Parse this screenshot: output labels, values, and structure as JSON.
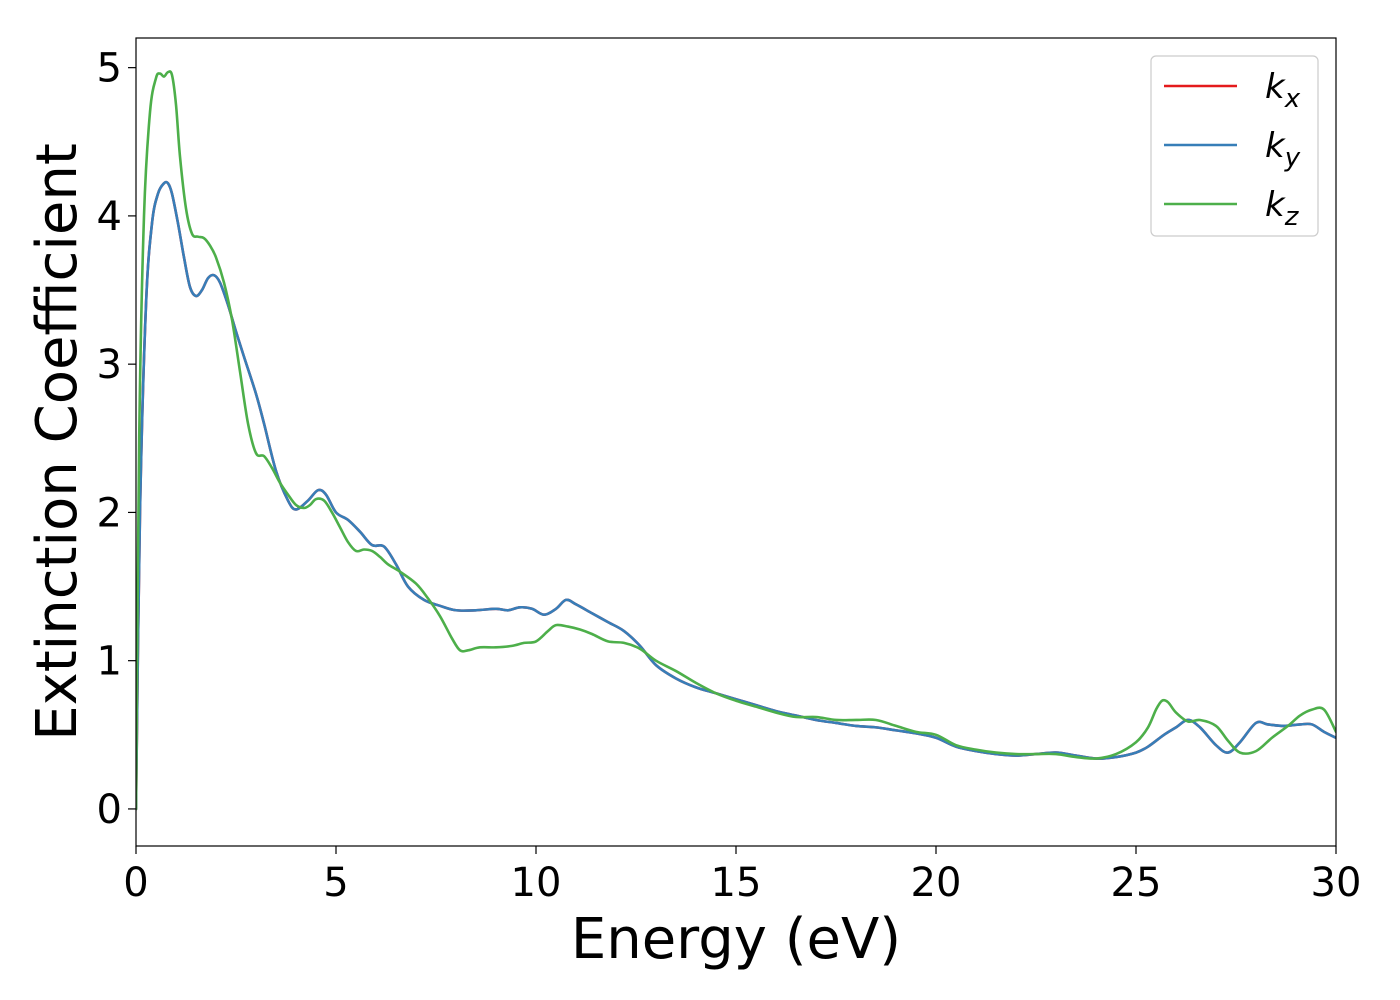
{
  "chart_data": {
    "type": "line",
    "title": "",
    "xlabel": "Energy (eV)",
    "ylabel": "Extinction Coefficient",
    "xlim": [
      0,
      30
    ],
    "ylim": [
      -0.25,
      5.2
    ],
    "xticks": [
      0,
      5,
      10,
      15,
      20,
      25,
      30
    ],
    "yticks": [
      0,
      1,
      2,
      3,
      4,
      5
    ],
    "grid": false,
    "legend_position": "top-right",
    "series": [
      {
        "name": "k_x",
        "legend_base": "k",
        "legend_sub": "x",
        "color": "#e41a1c",
        "x": [
          0,
          0.1,
          0.25,
          0.4,
          0.55,
          0.7,
          0.8,
          0.9,
          1.05,
          1.2,
          1.35,
          1.5,
          1.65,
          1.8,
          1.95,
          2.1,
          2.3,
          2.5,
          2.7,
          3.0,
          3.2,
          3.5,
          3.8,
          4.0,
          4.3,
          4.55,
          4.75,
          5.0,
          5.3,
          5.6,
          5.9,
          6.2,
          6.5,
          6.8,
          7.2,
          7.6,
          8.0,
          8.5,
          9.0,
          9.3,
          9.6,
          9.9,
          10.2,
          10.5,
          10.75,
          11.0,
          11.4,
          11.8,
          12.2,
          12.6,
          13.0,
          13.5,
          14.0,
          14.5,
          15.0,
          15.5,
          16.0,
          16.5,
          17.0,
          17.5,
          18.0,
          18.5,
          19.0,
          19.5,
          20.0,
          20.5,
          21.0,
          21.5,
          22.0,
          22.5,
          23.0,
          23.5,
          24.0,
          24.5,
          25.0,
          25.3,
          25.7,
          26.0,
          26.3,
          26.6,
          27.0,
          27.3,
          27.6,
          28.0,
          28.3,
          28.7,
          29.1,
          29.4,
          29.7,
          30.0
        ],
        "y": [
          0.0,
          2.0,
          3.4,
          3.95,
          4.15,
          4.22,
          4.22,
          4.15,
          3.95,
          3.72,
          3.52,
          3.46,
          3.5,
          3.58,
          3.6,
          3.55,
          3.4,
          3.22,
          3.05,
          2.8,
          2.6,
          2.28,
          2.08,
          2.02,
          2.08,
          2.15,
          2.12,
          2.0,
          1.95,
          1.87,
          1.78,
          1.77,
          1.65,
          1.5,
          1.41,
          1.37,
          1.34,
          1.34,
          1.35,
          1.34,
          1.36,
          1.35,
          1.31,
          1.35,
          1.41,
          1.38,
          1.32,
          1.26,
          1.2,
          1.1,
          0.97,
          0.88,
          0.82,
          0.78,
          0.74,
          0.7,
          0.66,
          0.63,
          0.6,
          0.58,
          0.56,
          0.55,
          0.53,
          0.51,
          0.48,
          0.42,
          0.39,
          0.37,
          0.36,
          0.37,
          0.38,
          0.36,
          0.34,
          0.35,
          0.38,
          0.42,
          0.5,
          0.55,
          0.6,
          0.55,
          0.43,
          0.38,
          0.45,
          0.58,
          0.57,
          0.56,
          0.57,
          0.57,
          0.52,
          0.48
        ]
      },
      {
        "name": "k_y",
        "legend_base": "k",
        "legend_sub": "y",
        "color": "#377eb8",
        "x": [
          0,
          0.1,
          0.25,
          0.4,
          0.55,
          0.7,
          0.8,
          0.9,
          1.05,
          1.2,
          1.35,
          1.5,
          1.65,
          1.8,
          1.95,
          2.1,
          2.3,
          2.5,
          2.7,
          3.0,
          3.2,
          3.5,
          3.8,
          4.0,
          4.3,
          4.55,
          4.75,
          5.0,
          5.3,
          5.6,
          5.9,
          6.2,
          6.5,
          6.8,
          7.2,
          7.6,
          8.0,
          8.5,
          9.0,
          9.3,
          9.6,
          9.9,
          10.2,
          10.5,
          10.75,
          11.0,
          11.4,
          11.8,
          12.2,
          12.6,
          13.0,
          13.5,
          14.0,
          14.5,
          15.0,
          15.5,
          16.0,
          16.5,
          17.0,
          17.5,
          18.0,
          18.5,
          19.0,
          19.5,
          20.0,
          20.5,
          21.0,
          21.5,
          22.0,
          22.5,
          23.0,
          23.5,
          24.0,
          24.5,
          25.0,
          25.3,
          25.7,
          26.0,
          26.3,
          26.6,
          27.0,
          27.3,
          27.6,
          28.0,
          28.3,
          28.7,
          29.1,
          29.4,
          29.7,
          30.0
        ],
        "y": [
          0.0,
          2.0,
          3.4,
          3.95,
          4.15,
          4.22,
          4.22,
          4.15,
          3.95,
          3.72,
          3.52,
          3.46,
          3.5,
          3.58,
          3.6,
          3.55,
          3.4,
          3.22,
          3.05,
          2.8,
          2.6,
          2.28,
          2.08,
          2.02,
          2.08,
          2.15,
          2.12,
          2.0,
          1.95,
          1.87,
          1.78,
          1.77,
          1.65,
          1.5,
          1.41,
          1.37,
          1.34,
          1.34,
          1.35,
          1.34,
          1.36,
          1.35,
          1.31,
          1.35,
          1.41,
          1.38,
          1.32,
          1.26,
          1.2,
          1.1,
          0.97,
          0.88,
          0.82,
          0.78,
          0.74,
          0.7,
          0.66,
          0.63,
          0.6,
          0.58,
          0.56,
          0.55,
          0.53,
          0.51,
          0.48,
          0.42,
          0.39,
          0.37,
          0.36,
          0.37,
          0.38,
          0.36,
          0.34,
          0.35,
          0.38,
          0.42,
          0.5,
          0.55,
          0.6,
          0.55,
          0.43,
          0.38,
          0.45,
          0.58,
          0.57,
          0.56,
          0.57,
          0.57,
          0.52,
          0.48
        ]
      },
      {
        "name": "k_z",
        "legend_base": "k",
        "legend_sub": "z",
        "color": "#4daf4a",
        "x": [
          0,
          0.08,
          0.2,
          0.35,
          0.5,
          0.6,
          0.7,
          0.8,
          0.9,
          1.0,
          1.1,
          1.25,
          1.4,
          1.55,
          1.7,
          1.85,
          2.0,
          2.2,
          2.4,
          2.6,
          2.8,
          3.0,
          3.2,
          3.4,
          3.6,
          3.8,
          4.0,
          4.2,
          4.35,
          4.5,
          4.7,
          4.9,
          5.1,
          5.3,
          5.5,
          5.7,
          5.9,
          6.1,
          6.3,
          6.6,
          7.0,
          7.3,
          7.6,
          7.9,
          8.1,
          8.3,
          8.6,
          9.0,
          9.4,
          9.7,
          10.0,
          10.3,
          10.5,
          10.8,
          11.1,
          11.4,
          11.8,
          12.2,
          12.6,
          13.0,
          13.5,
          14.0,
          14.5,
          15.0,
          15.5,
          16.0,
          16.5,
          17.0,
          17.5,
          18.0,
          18.5,
          19.0,
          19.5,
          20.0,
          20.5,
          21.0,
          21.5,
          22.0,
          22.5,
          23.0,
          23.5,
          24.0,
          24.5,
          25.0,
          25.3,
          25.5,
          25.65,
          25.8,
          26.0,
          26.3,
          26.6,
          27.0,
          27.3,
          27.6,
          28.0,
          28.4,
          28.8,
          29.1,
          29.4,
          29.7,
          30.0
        ],
        "y": [
          0.0,
          2.5,
          4.0,
          4.7,
          4.93,
          4.96,
          4.94,
          4.97,
          4.95,
          4.75,
          4.4,
          4.05,
          3.88,
          3.86,
          3.85,
          3.8,
          3.72,
          3.55,
          3.3,
          2.95,
          2.6,
          2.4,
          2.38,
          2.3,
          2.2,
          2.12,
          2.05,
          2.03,
          2.05,
          2.09,
          2.08,
          2.0,
          1.9,
          1.8,
          1.74,
          1.75,
          1.74,
          1.7,
          1.65,
          1.6,
          1.52,
          1.42,
          1.3,
          1.15,
          1.07,
          1.07,
          1.09,
          1.09,
          1.1,
          1.12,
          1.13,
          1.2,
          1.24,
          1.23,
          1.21,
          1.18,
          1.13,
          1.12,
          1.08,
          1.0,
          0.93,
          0.85,
          0.78,
          0.73,
          0.69,
          0.65,
          0.62,
          0.62,
          0.6,
          0.6,
          0.6,
          0.56,
          0.52,
          0.5,
          0.43,
          0.4,
          0.38,
          0.37,
          0.37,
          0.37,
          0.35,
          0.34,
          0.37,
          0.45,
          0.55,
          0.67,
          0.73,
          0.72,
          0.65,
          0.59,
          0.6,
          0.56,
          0.46,
          0.38,
          0.39,
          0.48,
          0.56,
          0.63,
          0.67,
          0.67,
          0.52
        ]
      }
    ]
  }
}
